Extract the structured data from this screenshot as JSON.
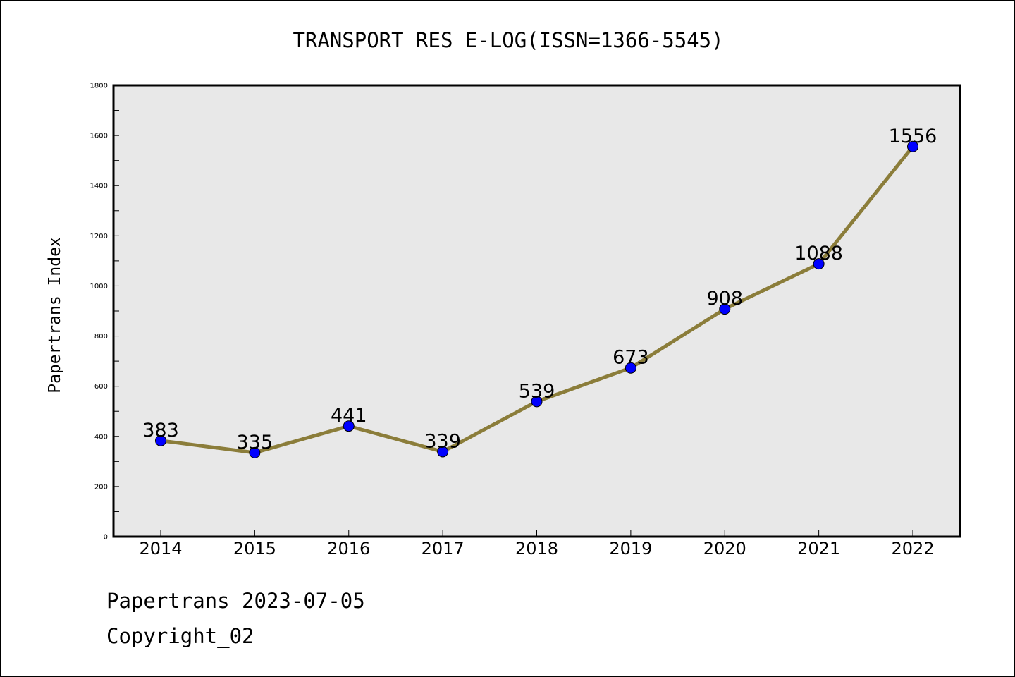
{
  "chart_data": {
    "type": "line",
    "title": "TRANSPORT RES E-LOG(ISSN=1366-5545)",
    "ylabel": "Papertrans Index",
    "xlabel": "",
    "categories": [
      "2014",
      "2015",
      "2016",
      "2017",
      "2018",
      "2019",
      "2020",
      "2021",
      "2022"
    ],
    "values": [
      383,
      335,
      441,
      339,
      539,
      673,
      908,
      1088,
      1556
    ],
    "data_labels": [
      "383",
      "335",
      "441",
      "339",
      "539",
      "673",
      "908",
      "1088",
      "1556"
    ],
    "ylim": [
      0,
      1800
    ],
    "yticks": [
      0,
      200,
      400,
      600,
      800,
      1000,
      1200,
      1400,
      1600,
      1800
    ],
    "ytick_labels": [
      "0",
      "200",
      "400",
      "600",
      "800",
      "1000",
      "1200",
      "1400",
      "1600",
      "1800"
    ],
    "grid": false,
    "line_color": "#8b7d3a",
    "marker_color": "#0000ff",
    "plot_background": "#e8e8e8"
  },
  "footer": {
    "date_line": "Papertrans 2023-07-05",
    "copyright_line": "Copyright_02"
  }
}
